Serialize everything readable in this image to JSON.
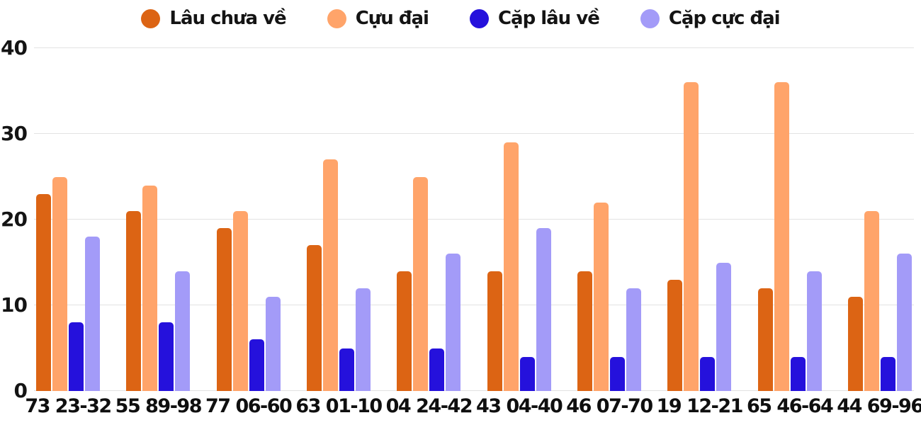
{
  "chart_data": {
    "type": "bar",
    "title": "",
    "xlabel": "",
    "ylabel": "",
    "categories": [
      "73 23-32",
      "55 89-98",
      "77 06-60",
      "63 01-10",
      "04 24-42",
      "43 04-40",
      "46 07-70",
      "19 12-21",
      "65 46-64",
      "44 69-96"
    ],
    "series": [
      {
        "name": "Lâu chưa về",
        "color": "#dc6414",
        "values": [
          23,
          21,
          19,
          17,
          14,
          14,
          14,
          13,
          12,
          11
        ]
      },
      {
        "name": "Cựu đại",
        "color": "#ffa46a",
        "values": [
          25,
          24,
          21,
          27,
          25,
          29,
          22,
          36,
          36,
          21
        ]
      },
      {
        "name": "Cặp lâu về",
        "color": "#2511dc",
        "values": [
          8,
          8,
          6,
          5,
          5,
          4,
          4,
          4,
          4,
          4
        ]
      },
      {
        "name": "Cặp cực đại",
        "color": "#a39bf8",
        "values": [
          18,
          14,
          11,
          12,
          16,
          19,
          12,
          15,
          14,
          16
        ]
      }
    ],
    "ylim": [
      0,
      40
    ],
    "yticks": [
      0,
      10,
      20,
      30,
      40
    ],
    "grid": true,
    "legend_position": "top",
    "colors": {
      "gridline": "#e2e2e2",
      "text": "#141414",
      "background": "#ffffff"
    }
  }
}
